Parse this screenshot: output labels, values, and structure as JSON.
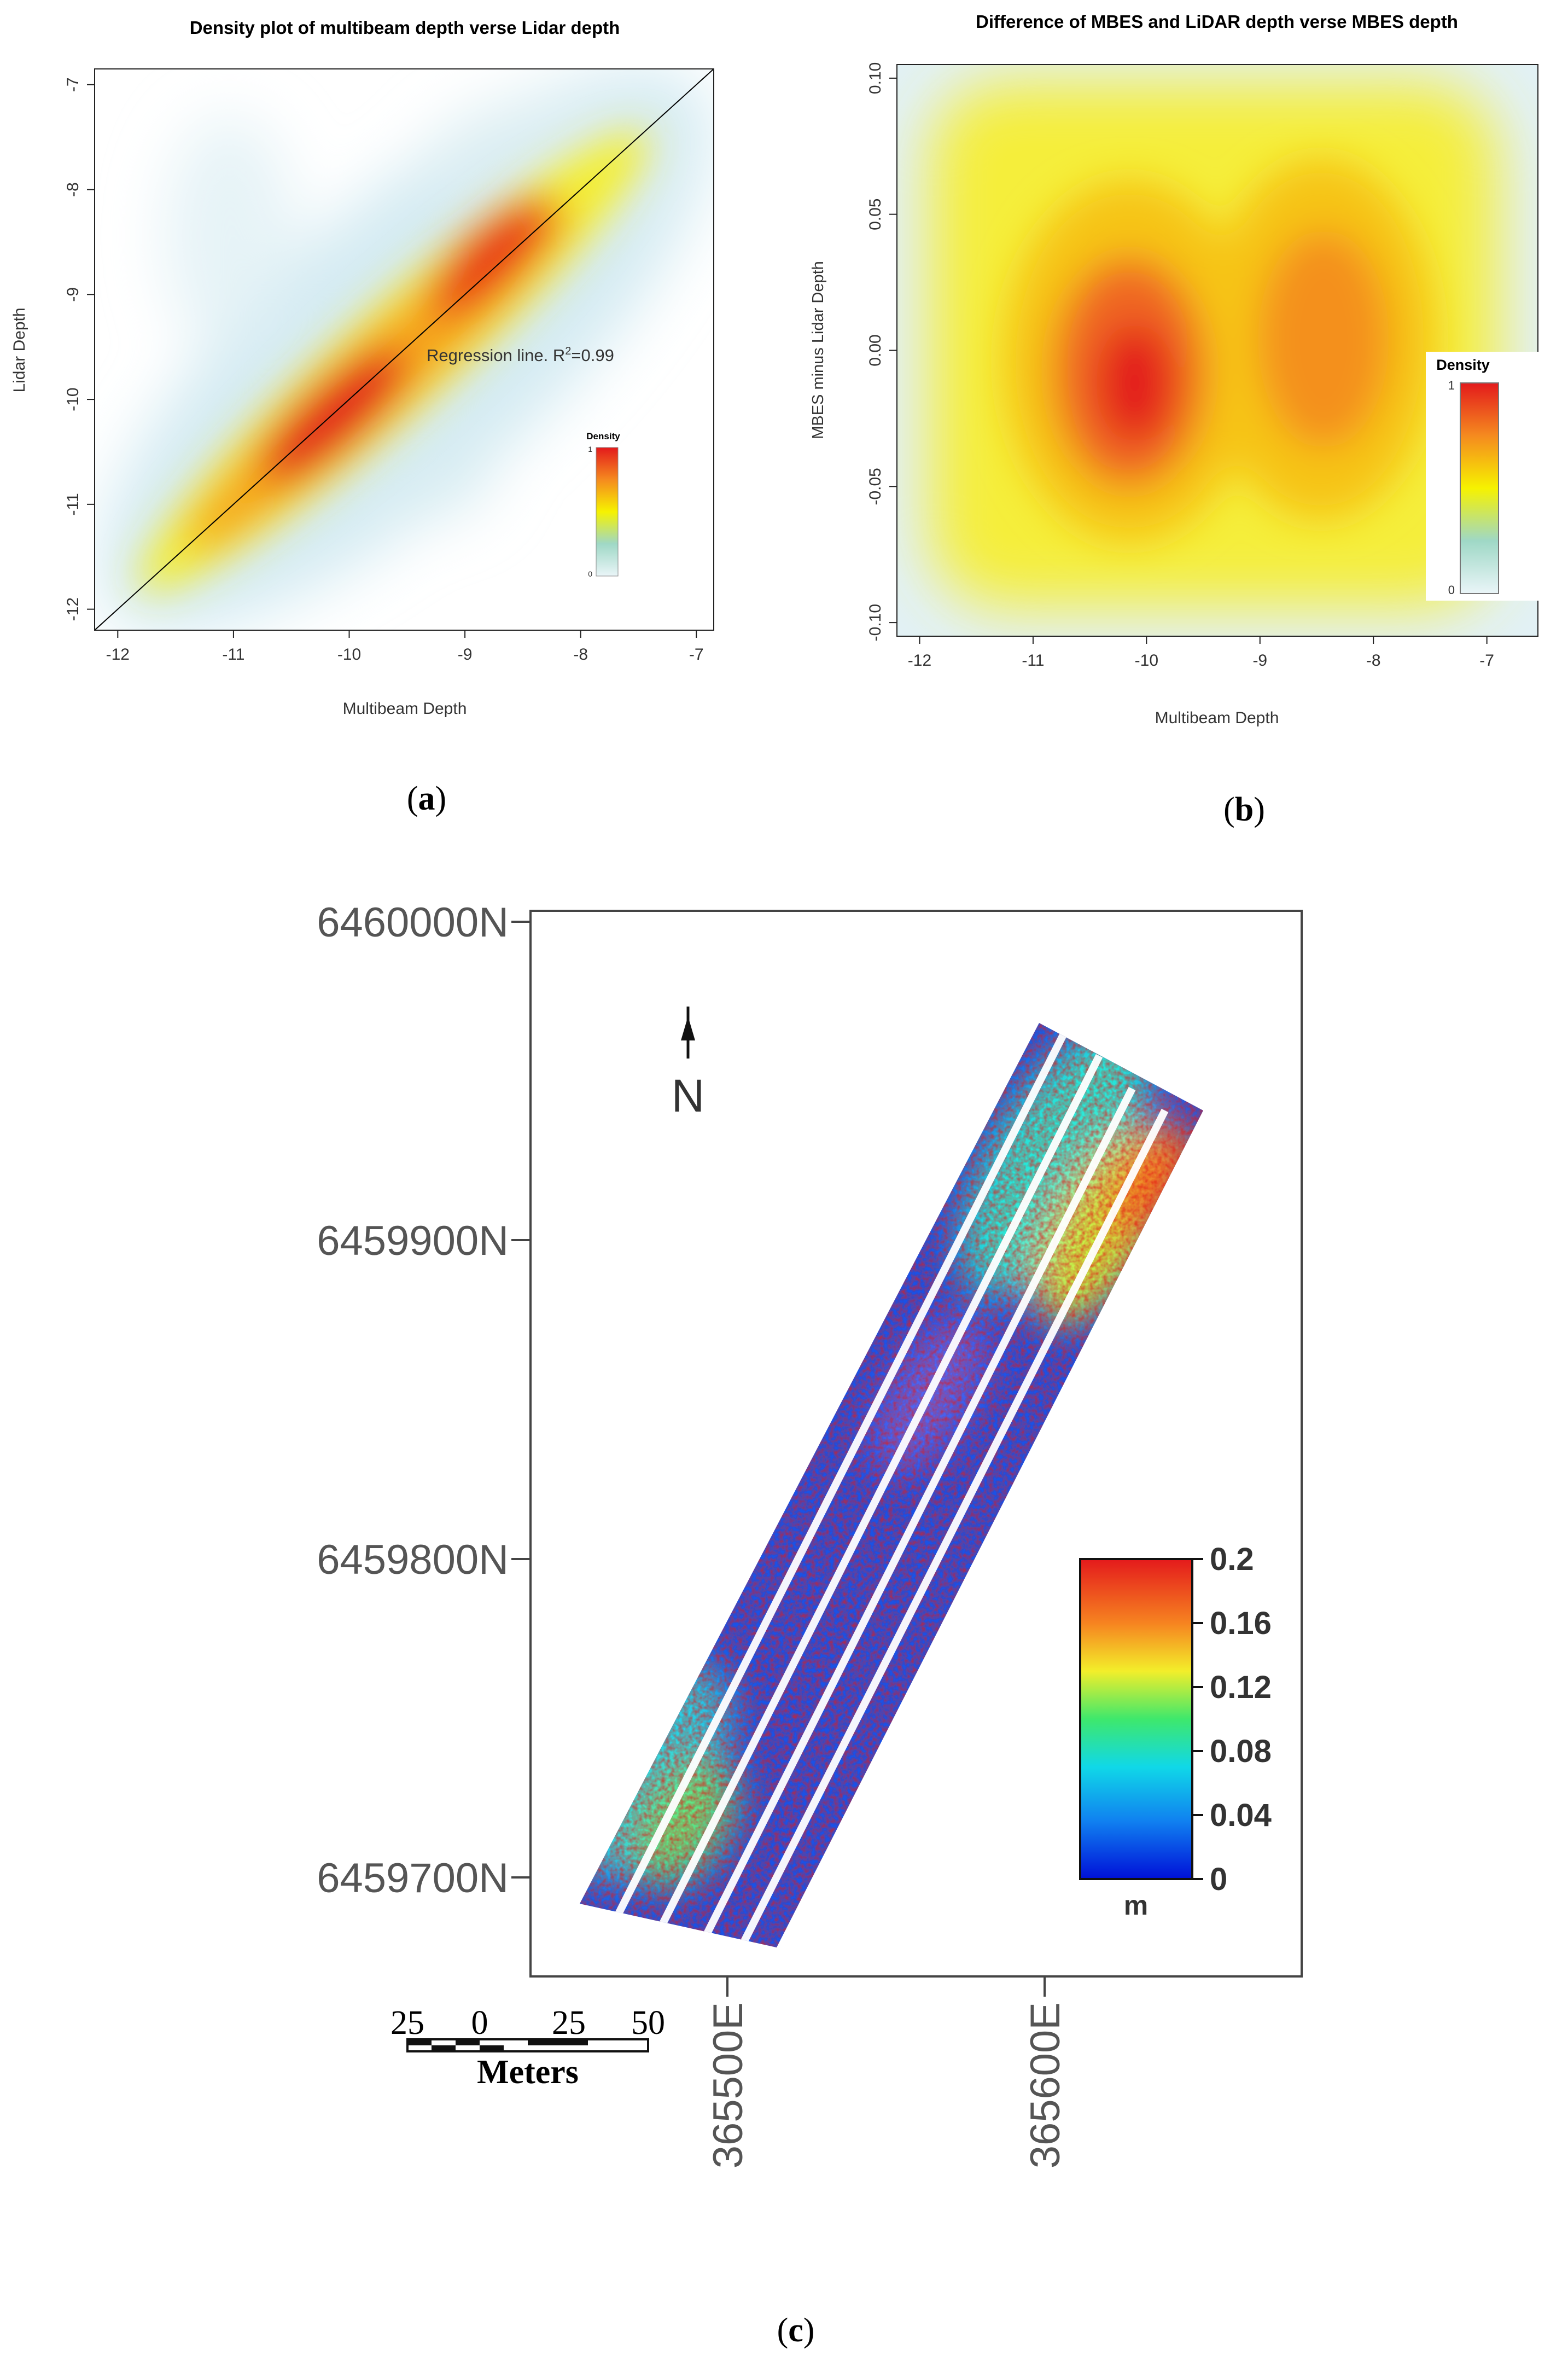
{
  "captions": {
    "a": "a",
    "b": "b",
    "c": "c"
  },
  "chart_data": [
    {
      "id": "a",
      "type": "heatmap",
      "title": "Density plot of multibeam depth verse Lidar depth",
      "xlabel": "Multibeam Depth",
      "ylabel": "Lidar Depth",
      "xlim": [
        -12.2,
        -6.85
      ],
      "ylim": [
        -12.2,
        -6.85
      ],
      "xticks": [
        -12,
        -11,
        -10,
        -9,
        -8,
        -7
      ],
      "yticks": [
        -12,
        -11,
        -10,
        -9,
        -8,
        -7
      ],
      "regression_line": {
        "from": [
          -12.2,
          -12.2
        ],
        "to": [
          -6.85,
          -6.85
        ]
      },
      "annotation": {
        "text_prefix": "Regression line. R",
        "sup": "2",
        "text_suffix": "=0.99"
      },
      "legend": {
        "title": "Density",
        "max_label": "1",
        "min_label": "0",
        "placement": "right"
      }
    },
    {
      "id": "b",
      "type": "heatmap",
      "title": "Difference of MBES and LiDAR depth verse MBES depth",
      "xlabel": "Multibeam Depth",
      "ylabel": "MBES minus Lidar Depth",
      "xlim": [
        -12.2,
        -6.55
      ],
      "ylim": [
        -0.105,
        0.105
      ],
      "xticks": [
        -12,
        -11,
        -10,
        -9,
        -8,
        -7
      ],
      "yticks": [
        -0.1,
        -0.05,
        0.0,
        0.05,
        0.1
      ],
      "ytick_labels": [
        "-0.10",
        "-0.05",
        "0.00",
        "0.05",
        "0.10"
      ],
      "density_peaks": [
        [
          -10.1,
          -0.01
        ],
        [
          -8.7,
          0.01
        ]
      ],
      "legend": {
        "title": "Density",
        "max_label": "1",
        "min_label": "0",
        "placement": "right"
      }
    },
    {
      "id": "c",
      "type": "heatmap",
      "northing_labels": [
        "6460000N",
        "6459900N",
        "6459800N",
        "6459700N"
      ],
      "easting_labels": [
        "365500E",
        "365600E"
      ],
      "north_arrow": "N",
      "colorbar": {
        "unit": "m",
        "min": 0,
        "max": 0.2,
        "ticks": [
          "0.2",
          "0.16",
          "0.12",
          "0.08",
          "0.04",
          "0"
        ]
      },
      "scalebar": {
        "labels": [
          "25",
          "0",
          "25",
          "50"
        ],
        "unit": "Meters"
      }
    }
  ],
  "colors": {
    "density_low": "#cfe9f1",
    "density_mid": "#f6f200",
    "density_high": "#ea1f1a",
    "diff_low": "#0018e0",
    "diff_high": "#e51a16"
  }
}
